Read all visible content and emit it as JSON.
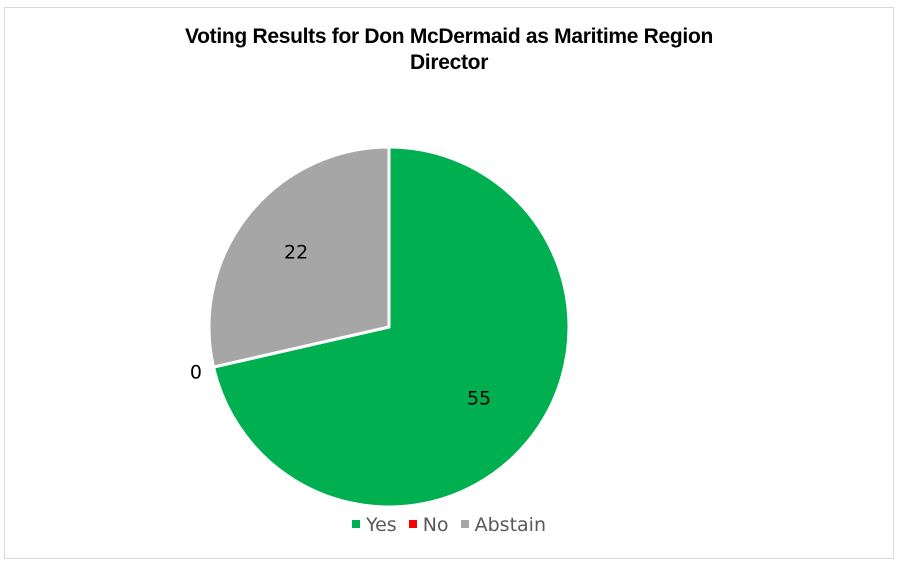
{
  "chart_data": {
    "type": "pie",
    "title_lines": [
      "Voting Results for Don McDermaid as Maritime Region",
      "Director"
    ],
    "categories": [
      "Yes",
      "No",
      "Abstain"
    ],
    "values": [
      55,
      0,
      22
    ],
    "data_labels": [
      "55",
      "0",
      "22"
    ],
    "colors": [
      "#00b050",
      "#ff0000",
      "#a6a6a6"
    ],
    "legend_position": "bottom",
    "start_angle_deg": 0,
    "direction": "clockwise"
  }
}
